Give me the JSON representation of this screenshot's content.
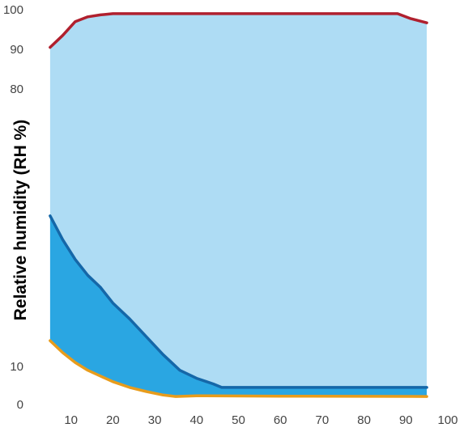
{
  "chart_data": {
    "type": "area",
    "title": "",
    "xlabel": "",
    "ylabel": "Relative humidity (RH %)",
    "x_ticks": [
      10,
      20,
      30,
      40,
      50,
      60,
      70,
      80,
      90,
      100
    ],
    "y_ticks": [
      0,
      10,
      80,
      90,
      100
    ],
    "xlim": [
      0,
      100
    ],
    "ylim": [
      0,
      100
    ],
    "y_scale": "piecewise linear (0-10 expanded, 10-80 compressed, 80-100 expanded)",
    "grid": false,
    "legend": "none",
    "series": [
      {
        "role": "upper-boundary",
        "color": "#b0202e",
        "points": [
          [
            5,
            90.5
          ],
          [
            8,
            93.5
          ],
          [
            11,
            97
          ],
          [
            14,
            98.2
          ],
          [
            17,
            98.7
          ],
          [
            20,
            99
          ],
          [
            40,
            99
          ],
          [
            60,
            99
          ],
          [
            80,
            99
          ],
          [
            88,
            99
          ],
          [
            91,
            97.8
          ],
          [
            95,
            96.7
          ]
        ]
      },
      {
        "role": "middle-boundary",
        "color": "#1567a8",
        "points": [
          [
            5,
            48
          ],
          [
            8,
            42
          ],
          [
            11,
            37
          ],
          [
            14,
            33
          ],
          [
            17,
            30
          ],
          [
            20,
            26
          ],
          [
            24,
            22
          ],
          [
            28,
            17.5
          ],
          [
            32,
            13
          ],
          [
            36,
            9
          ],
          [
            40,
            6.9
          ],
          [
            44,
            5.4
          ],
          [
            46,
            4.5
          ],
          [
            50,
            4.5
          ],
          [
            70,
            4.5
          ],
          [
            95,
            4.5
          ]
        ]
      },
      {
        "role": "lower-boundary",
        "color": "#e89c1c",
        "points": [
          [
            5,
            16.5
          ],
          [
            8,
            13.5
          ],
          [
            11,
            11
          ],
          [
            14,
            9
          ],
          [
            17,
            7.5
          ],
          [
            20,
            6
          ],
          [
            24,
            4.5
          ],
          [
            28,
            3.4
          ],
          [
            32,
            2.5
          ],
          [
            35,
            2.1
          ],
          [
            40,
            2.3
          ],
          [
            60,
            2.2
          ],
          [
            95,
            2.1
          ]
        ]
      }
    ],
    "fills": [
      {
        "between": [
          "middle-boundary",
          "upper-boundary"
        ],
        "color": "#aedcf4"
      },
      {
        "between": [
          "lower-boundary",
          "middle-boundary"
        ],
        "color": "#2aa6e2"
      }
    ]
  }
}
